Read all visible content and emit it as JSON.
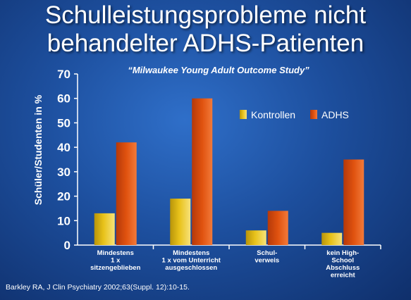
{
  "slide": {
    "title_line1": "Schulleistungsprobleme nicht",
    "title_line2": "behandelter ADHS-Patienten",
    "subtitle": "“Milwaukee Young Adult Outcome Study”",
    "footer": "Barkley RA, J Clin Psychiatry 2002;63(Suppl. 12):10-15."
  },
  "colors": {
    "kontrollen": "#e8c21a",
    "adhs": "#e0520f",
    "axis": "#ffffff"
  },
  "chart_data": {
    "type": "bar",
    "ylabel": "Schüler/Studenten in %",
    "ylim": [
      0,
      70
    ],
    "yticks": [
      0,
      10,
      20,
      30,
      40,
      50,
      60,
      70
    ],
    "categories": [
      [
        "Mindestens",
        "1 x",
        "sitzengeblieben"
      ],
      [
        "Mindestens",
        "1 x vom Unterricht",
        "ausgeschlossen"
      ],
      [
        "Schul-",
        "verweis"
      ],
      [
        "kein High-",
        "School",
        "Abschluss",
        "erreicht"
      ]
    ],
    "series": [
      {
        "name": "Kontrollen",
        "values": [
          13,
          19,
          6,
          5
        ]
      },
      {
        "name": "ADHS",
        "values": [
          42,
          60,
          14,
          35
        ]
      }
    ],
    "legend_position": "top-right",
    "grid": false
  }
}
